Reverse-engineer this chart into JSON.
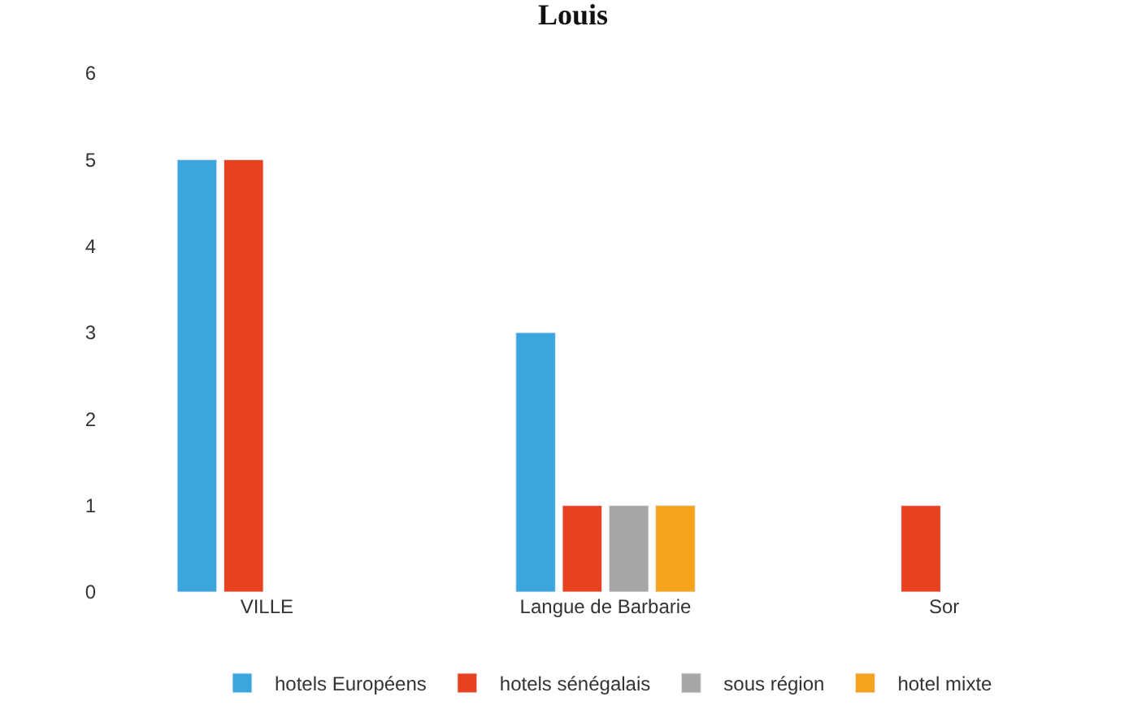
{
  "chart_data": {
    "type": "bar",
    "title": "Louis",
    "categories": [
      "VILLE",
      "Langue de Barbarie",
      "Sor"
    ],
    "series": [
      {
        "name": "hotels Européens",
        "color": "#3aa6dd",
        "values": [
          5,
          3,
          null
        ]
      },
      {
        "name": "hotels sénégalais",
        "color": "#e8411f",
        "values": [
          5,
          1,
          1
        ]
      },
      {
        "name": "sous région",
        "color": "#a6a6a6",
        "values": [
          null,
          1,
          null
        ]
      },
      {
        "name": "hotel mixte",
        "color": "#f5a21c",
        "values": [
          null,
          1,
          null
        ]
      }
    ],
    "ylim": [
      0,
      6
    ],
    "yticks": [
      0,
      1,
      2,
      3,
      4,
      5,
      6
    ],
    "legend": "bottom"
  }
}
